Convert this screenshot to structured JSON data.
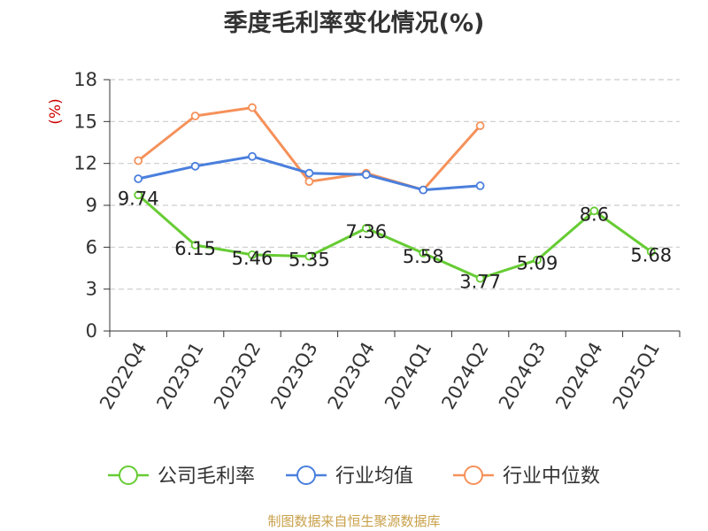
{
  "chart_data": {
    "type": "line",
    "title": "季度毛利率变化情况(%)",
    "ylabel": "(%)",
    "xlabel": "",
    "categories": [
      "2022Q4",
      "2023Q1",
      "2023Q2",
      "2023Q3",
      "2023Q4",
      "2024Q1",
      "2024Q2",
      "2024Q3",
      "2024Q4",
      "2025Q1"
    ],
    "ylim": [
      0,
      18
    ],
    "yticks": [
      0,
      3,
      6,
      9,
      12,
      15,
      18
    ],
    "grid": true,
    "legend_position": "bottom",
    "series": [
      {
        "name": "公司毛利率",
        "color": "#66cc33",
        "show_labels": true,
        "values": [
          9.74,
          6.15,
          5.46,
          5.35,
          7.36,
          5.58,
          3.77,
          5.09,
          8.6,
          5.68
        ]
      },
      {
        "name": "行业均值",
        "color": "#4a7fdd",
        "show_labels": false,
        "values": [
          10.9,
          11.8,
          12.5,
          11.3,
          11.2,
          10.1,
          10.4,
          null,
          null,
          null
        ]
      },
      {
        "name": "行业中位数",
        "color": "#f5915a",
        "show_labels": false,
        "values": [
          12.2,
          15.4,
          16.0,
          10.7,
          11.3,
          10.1,
          14.7,
          null,
          null,
          null
        ]
      }
    ],
    "source": "制图数据来自恒生聚源数据库"
  }
}
